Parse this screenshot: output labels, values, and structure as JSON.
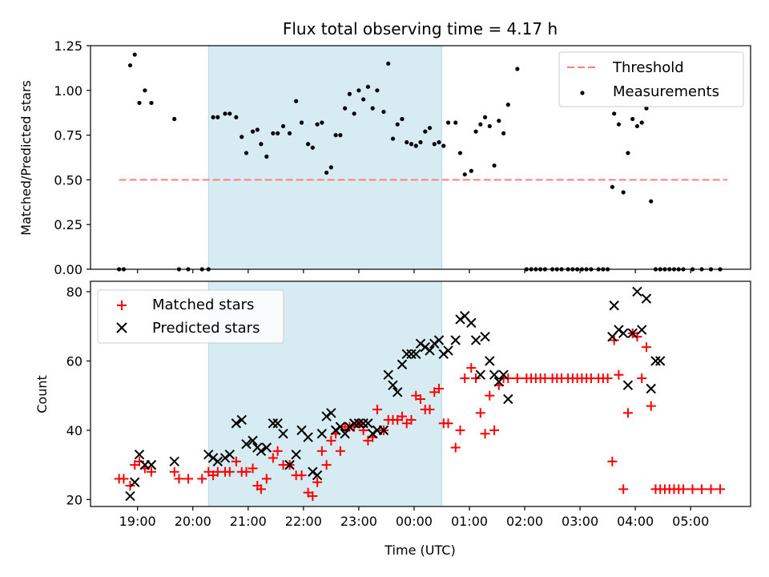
{
  "figure": {
    "title": "Flux total observing time = 4.17 h",
    "xlabel": "Time (UTC)"
  },
  "colors": {
    "threshold": "#ff7f7f",
    "measurements": "#000000",
    "matched": "#ff0000",
    "predicted": "#000000",
    "shade": "#add8e6"
  },
  "chart_data": [
    {
      "type": "scatter",
      "ylabel": "Matched/Predicted stars",
      "xlim": [
        "18:09",
        "06:05"
      ],
      "ylim": [
        0,
        1.25
      ],
      "yticks": [
        "0.00",
        "0.25",
        "0.50",
        "0.75",
        "1.00",
        "1.25"
      ],
      "grid": false,
      "legend_position": "upper right",
      "shaded_interval": [
        "20:17",
        "00:30"
      ],
      "threshold": {
        "name": "Threshold",
        "value": 0.5,
        "x_range": [
          "18:40",
          "05:40"
        ],
        "style": "dashed"
      },
      "series": [
        {
          "name": "Measurements",
          "x": [
            "18:40",
            "18:45",
            "18:52",
            "18:57",
            "19:02",
            "19:08",
            "19:15",
            "19:40",
            "19:45",
            "19:55",
            "20:10",
            "20:17",
            "20:22",
            "20:27",
            "20:35",
            "20:40",
            "20:47",
            "20:53",
            "20:58",
            "21:05",
            "21:10",
            "21:14",
            "21:20",
            "21:27",
            "21:32",
            "21:38",
            "21:45",
            "21:52",
            "21:58",
            "22:05",
            "22:10",
            "22:15",
            "22:20",
            "22:25",
            "22:30",
            "22:35",
            "22:40",
            "22:45",
            "22:50",
            "22:55",
            "23:00",
            "23:05",
            "23:10",
            "23:15",
            "23:20",
            "23:27",
            "23:32",
            "23:37",
            "23:42",
            "23:47",
            "23:52",
            "23:57",
            "24:02",
            "24:07",
            "24:12",
            "24:17",
            "24:22",
            "24:27",
            "24:32",
            "24:37",
            "24:45",
            "24:50",
            "24:55",
            "25:02",
            "25:07",
            "25:12",
            "25:17",
            "25:22",
            "25:27",
            "25:32",
            "25:37",
            "25:42",
            "25:52",
            "26:02",
            "26:07",
            "26:12",
            "26:17",
            "26:22",
            "26:30",
            "26:35",
            "26:40",
            "26:47",
            "26:52",
            "26:57",
            "27:02",
            "27:07",
            "27:12",
            "27:20",
            "27:25",
            "27:30",
            "27:35",
            "27:37",
            "27:42",
            "27:47",
            "27:52",
            "27:57",
            "28:02",
            "28:07",
            "28:12",
            "28:17",
            "28:22",
            "28:27",
            "28:32",
            "28:37",
            "28:42",
            "28:47",
            "28:52",
            "29:02",
            "29:12",
            "29:22",
            "29:32"
          ],
          "y": [
            0,
            0,
            1.14,
            1.2,
            0.93,
            1.0,
            0.93,
            0.84,
            0,
            0,
            0,
            0,
            0.85,
            0.85,
            0.87,
            0.87,
            0.85,
            0.74,
            0.65,
            0.77,
            0.78,
            0.7,
            0.63,
            0.76,
            0.76,
            0.8,
            0.76,
            0.94,
            0.82,
            0.7,
            0.68,
            0.81,
            0.82,
            0.54,
            0.57,
            0.75,
            0.75,
            0.9,
            0.98,
            0.87,
            1.0,
            0.95,
            1.02,
            0.9,
            1.0,
            0.88,
            1.15,
            0.73,
            0.81,
            0.84,
            0.71,
            0.7,
            0.69,
            0.71,
            0.77,
            0.79,
            0.7,
            0.71,
            0.69,
            0.82,
            0.82,
            0.65,
            0.53,
            0.55,
            0.77,
            0.81,
            0.85,
            0.8,
            0.58,
            0.83,
            0.76,
            0.92,
            1.12,
            0,
            0,
            0,
            0,
            0,
            0,
            0,
            0,
            0,
            0,
            0,
            0,
            0,
            0,
            0,
            0,
            0,
            0.46,
            0.87,
            0.81,
            0.43,
            0.65,
            0.84,
            0.8,
            0.82,
            0.9,
            0.38,
            0,
            0,
            0,
            0,
            0,
            0,
            0,
            0,
            0,
            0,
            0
          ]
        }
      ]
    },
    {
      "type": "scatter",
      "ylabel": "Count",
      "xlabel": "Time (UTC)",
      "xlim": [
        "18:09",
        "06:05"
      ],
      "ylim": [
        18,
        83
      ],
      "yticks": [
        "20",
        "40",
        "60",
        "80"
      ],
      "xticks": [
        "19:00",
        "20:00",
        "21:00",
        "22:00",
        "23:00",
        "00:00",
        "01:00",
        "02:00",
        "03:00",
        "04:00",
        "05:00"
      ],
      "grid": false,
      "legend_position": "upper left",
      "shaded_interval": [
        "20:17",
        "00:30"
      ],
      "series": [
        {
          "name": "Matched stars",
          "marker": "+",
          "x": [
            "18:40",
            "18:45",
            "18:52",
            "18:57",
            "19:02",
            "19:08",
            "19:15",
            "19:40",
            "19:45",
            "19:55",
            "20:10",
            "20:17",
            "20:22",
            "20:27",
            "20:35",
            "20:40",
            "20:47",
            "20:53",
            "20:58",
            "21:05",
            "21:10",
            "21:14",
            "21:20",
            "21:27",
            "21:32",
            "21:38",
            "21:45",
            "21:52",
            "21:58",
            "22:05",
            "22:10",
            "22:15",
            "22:20",
            "22:25",
            "22:30",
            "22:35",
            "22:40",
            "22:45",
            "22:50",
            "22:55",
            "23:00",
            "23:05",
            "23:10",
            "23:15",
            "23:20",
            "23:27",
            "23:32",
            "23:37",
            "23:42",
            "23:47",
            "23:52",
            "23:57",
            "24:02",
            "24:07",
            "24:12",
            "24:17",
            "24:22",
            "24:27",
            "24:32",
            "24:37",
            "24:45",
            "24:50",
            "24:55",
            "25:02",
            "25:07",
            "25:12",
            "25:17",
            "25:22",
            "25:27",
            "25:32",
            "25:37",
            "25:42",
            "25:52",
            "26:02",
            "26:07",
            "26:12",
            "26:17",
            "26:22",
            "26:30",
            "26:35",
            "26:40",
            "26:47",
            "26:52",
            "26:57",
            "27:02",
            "27:07",
            "27:12",
            "27:20",
            "27:25",
            "27:30",
            "27:35",
            "27:37",
            "27:42",
            "27:47",
            "27:52",
            "27:57",
            "28:02",
            "28:07",
            "28:12",
            "28:17",
            "28:22",
            "28:27",
            "28:32",
            "28:37",
            "28:42",
            "28:47",
            "28:52",
            "29:02",
            "29:12",
            "29:22",
            "29:32"
          ],
          "y": [
            26,
            26,
            24,
            30,
            31,
            29,
            28,
            28,
            26,
            26,
            26,
            28,
            27,
            28,
            28,
            28,
            31,
            28,
            28,
            29,
            24,
            23,
            26,
            32,
            34,
            30,
            30,
            27,
            27,
            22,
            21,
            25,
            34,
            30,
            37,
            39,
            34,
            41,
            41,
            41,
            42,
            40,
            37,
            38,
            46,
            40,
            43,
            43,
            43,
            44,
            42,
            43,
            50,
            49,
            46,
            46,
            51,
            52,
            42,
            42,
            35,
            40,
            55,
            58,
            55,
            45,
            39,
            50,
            40,
            53,
            55,
            55,
            55,
            55,
            55,
            55,
            55,
            55,
            55,
            55,
            55,
            55,
            55,
            55,
            55,
            55,
            55,
            55,
            55,
            55,
            31,
            66,
            56,
            23,
            45,
            68,
            67,
            55,
            64,
            47,
            23,
            23,
            23,
            23,
            23,
            23,
            23,
            23,
            23,
            23,
            23
          ]
        },
        {
          "name": "Predicted stars",
          "marker": "x",
          "x": [
            "18:52",
            "18:57",
            "19:02",
            "19:08",
            "19:15",
            "19:40",
            "20:17",
            "20:22",
            "20:27",
            "20:35",
            "20:40",
            "20:47",
            "20:53",
            "20:58",
            "21:05",
            "21:10",
            "21:14",
            "21:20",
            "21:27",
            "21:32",
            "21:38",
            "21:45",
            "21:52",
            "21:58",
            "22:05",
            "22:10",
            "22:15",
            "22:20",
            "22:25",
            "22:30",
            "22:35",
            "22:40",
            "22:45",
            "22:50",
            "22:55",
            "23:00",
            "23:05",
            "23:10",
            "23:15",
            "23:20",
            "23:27",
            "23:32",
            "23:37",
            "23:42",
            "23:47",
            "23:52",
            "23:57",
            "24:02",
            "24:07",
            "24:12",
            "24:17",
            "24:22",
            "24:27",
            "24:32",
            "24:37",
            "24:45",
            "24:50",
            "24:55",
            "25:02",
            "25:07",
            "25:12",
            "25:17",
            "25:22",
            "25:27",
            "25:32",
            "25:37",
            "25:42",
            "27:35",
            "27:37",
            "27:42",
            "27:47",
            "27:52",
            "27:57",
            "28:02",
            "28:07",
            "28:12",
            "28:17",
            "28:22",
            "28:27"
          ],
          "y": [
            21,
            25,
            33,
            30,
            30,
            31,
            33,
            32,
            31,
            32,
            33,
            42,
            43,
            36,
            37,
            35,
            34,
            35,
            42,
            42,
            39,
            30,
            33,
            40,
            38,
            28,
            27,
            39,
            44,
            45,
            40,
            41,
            39,
            41,
            42,
            42,
            42,
            42,
            39,
            40,
            40,
            56,
            53,
            51,
            59,
            62,
            62,
            62,
            65,
            64,
            63,
            65,
            66,
            62,
            63,
            66,
            72,
            73,
            71,
            66,
            56,
            67,
            60,
            56,
            54,
            56,
            49,
            67,
            76,
            69,
            68,
            53,
            68,
            80,
            69,
            78,
            52,
            60,
            60
          ]
        }
      ]
    }
  ]
}
